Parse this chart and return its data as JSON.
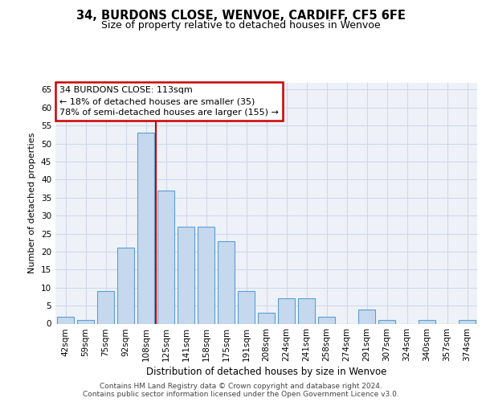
{
  "title_line1": "34, BURDONS CLOSE, WENVOE, CARDIFF, CF5 6FE",
  "title_line2": "Size of property relative to detached houses in Wenvoe",
  "xlabel": "Distribution of detached houses by size in Wenvoe",
  "ylabel": "Number of detached properties",
  "categories": [
    "42sqm",
    "59sqm",
    "75sqm",
    "92sqm",
    "108sqm",
    "125sqm",
    "141sqm",
    "158sqm",
    "175sqm",
    "191sqm",
    "208sqm",
    "224sqm",
    "241sqm",
    "258sqm",
    "274sqm",
    "291sqm",
    "307sqm",
    "324sqm",
    "340sqm",
    "357sqm",
    "374sqm"
  ],
  "values": [
    2,
    1,
    9,
    21,
    53,
    37,
    27,
    27,
    23,
    9,
    3,
    7,
    7,
    2,
    0,
    4,
    1,
    0,
    1,
    0,
    1
  ],
  "bar_color": "#c5d8ed",
  "bar_edge_color": "#5a9fd4",
  "vline_color": "#cc0000",
  "annotation_box_text": "34 BURDONS CLOSE: 113sqm\n← 18% of detached houses are smaller (35)\n78% of semi-detached houses are larger (155) →",
  "annotation_box_color": "#ffffff",
  "annotation_box_edge_color": "#cc0000",
  "ylim": [
    0,
    67
  ],
  "yticks": [
    0,
    5,
    10,
    15,
    20,
    25,
    30,
    35,
    40,
    45,
    50,
    55,
    60,
    65
  ],
  "grid_color": "#d0d8e8",
  "background_color": "#eef2f8",
  "footer_line1": "Contains HM Land Registry data © Crown copyright and database right 2024.",
  "footer_line2": "Contains public sector information licensed under the Open Government Licence v3.0.",
  "title_fontsize": 10.5,
  "subtitle_fontsize": 9,
  "xlabel_fontsize": 8.5,
  "ylabel_fontsize": 8,
  "tick_fontsize": 7.5,
  "footer_fontsize": 6.5,
  "annot_fontsize": 8
}
